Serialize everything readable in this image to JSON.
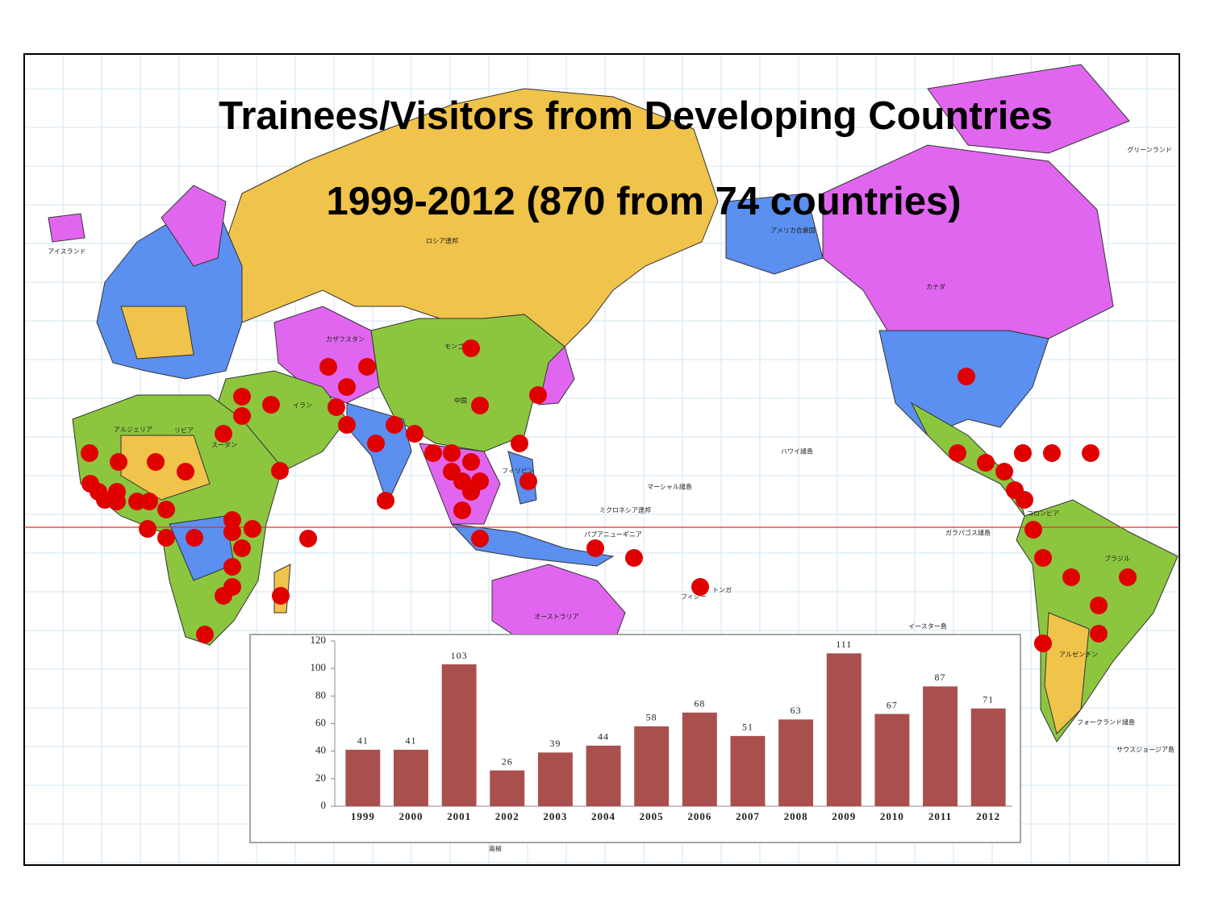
{
  "title_lines": [
    "Trainees/Visitors from Developing Countries",
    "1999-2012 (870 from 74 countries)"
  ],
  "map_labels": [
    "ロシア連邦",
    "アメリカ合衆国",
    "カナダ",
    "モンゴル",
    "中国",
    "カザフスタン",
    "イラン",
    "アルジェリア",
    "リビア",
    "スーダン",
    "アイスランド",
    "グリーンランド",
    "ハワイ諸島",
    "マーシャル諸島",
    "ミクロネシア連邦",
    "パプアニューギニア",
    "フィリピン",
    "オーストラリア",
    "ブラジル",
    "アルゼンチン",
    "コロンビア",
    "ガラパゴス諸島",
    "イースター島",
    "フォークランド諸島",
    "サウスジョージア島",
    "フィジー",
    "トンガ",
    "南極"
  ],
  "chart_data": {
    "type": "bar",
    "categories": [
      "1999",
      "2000",
      "2001",
      "2002",
      "2003",
      "2004",
      "2005",
      "2006",
      "2007",
      "2008",
      "2009",
      "2010",
      "2011",
      "2012"
    ],
    "values": [
      41,
      41,
      103,
      26,
      39,
      44,
      58,
      68,
      51,
      63,
      111,
      67,
      87,
      71
    ],
    "color": "#a9504f",
    "ylim": [
      0,
      120
    ],
    "yticks": [
      0,
      20,
      40,
      60,
      80,
      100,
      120
    ],
    "grid": false
  }
}
